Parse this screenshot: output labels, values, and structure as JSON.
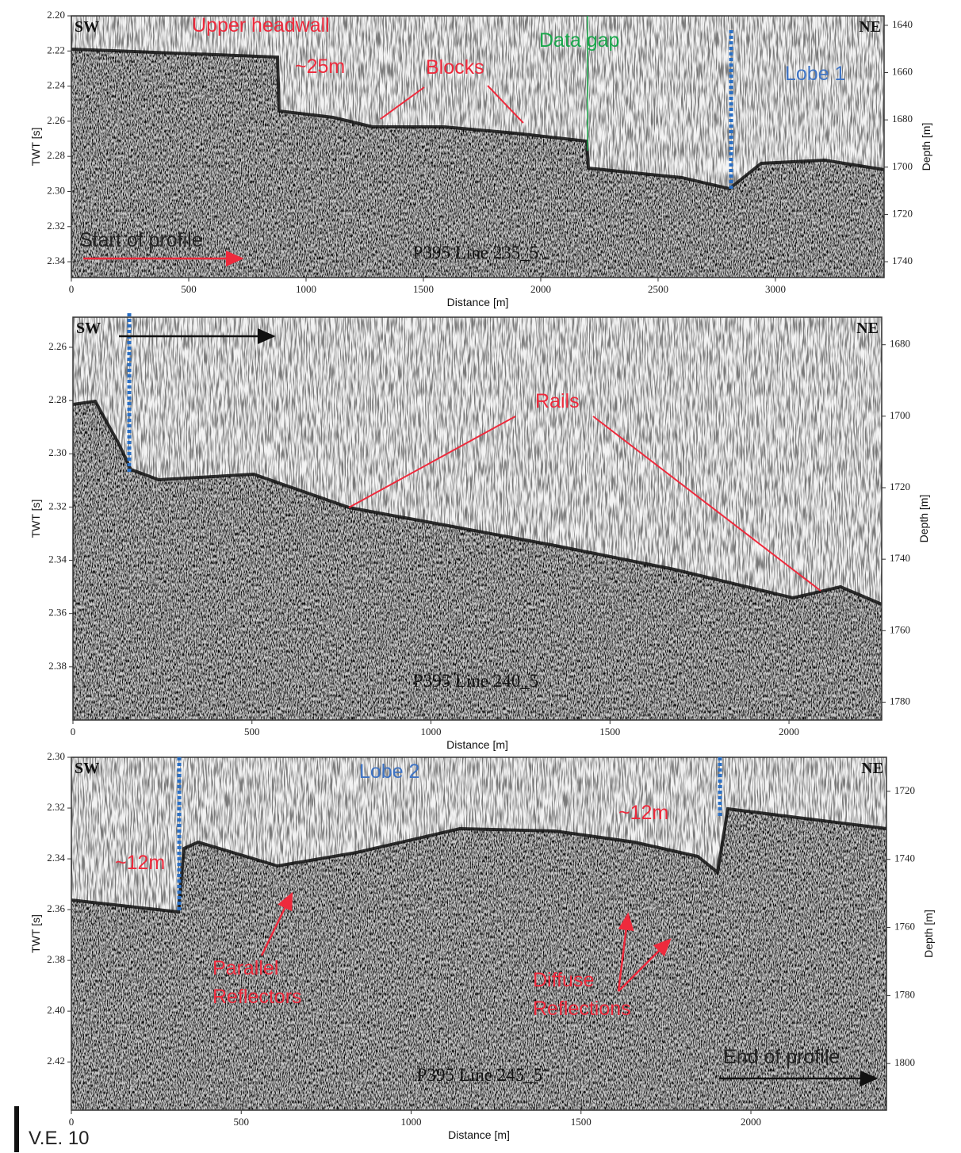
{
  "panels": [
    {
      "corner_left": "SW",
      "corner_right": "NE",
      "line_label": "P395 Line 235_5",
      "x_label": "Distance [m]",
      "y_label": "TWT [s]",
      "y2_label": "Depth [m]",
      "xlim": [
        0,
        3463
      ],
      "xticks": [
        0,
        500,
        1000,
        1500,
        2000,
        2500,
        3000
      ],
      "ylim": [
        2.349,
        2.2
      ],
      "yticks": [
        {
          "value": 2.2,
          "label": "2.20"
        },
        2.22,
        2.24,
        2.26,
        2.28,
        {
          "value": 2.3,
          "label": "2.30"
        },
        2.32,
        2.34
      ],
      "y2lim": [
        1746.7,
        1636
      ],
      "y2ticks": [
        1640,
        1660,
        1680,
        1700,
        1720,
        1740
      ],
      "annotations": [
        {
          "text": "Upper headwall",
          "color": "#ee2a3c"
        },
        {
          "text": "~25m",
          "color": "#ee2a3c"
        },
        {
          "text": "Blocks",
          "color": "#ee2a3c"
        },
        {
          "text": "Data gap",
          "color": "#1aa64b"
        },
        {
          "text": "Lobe 1",
          "color": "#3f74c4"
        },
        {
          "text": "Start of profile",
          "color": "#222222"
        }
      ]
    },
    {
      "corner_left": "SW",
      "corner_right": "NE",
      "line_label": "P395 Line 240_5",
      "x_label": "Distance [m]",
      "y_label": "TWT [s]",
      "y2_label": "Depth [m]",
      "xlim": [
        0,
        2259
      ],
      "xticks": [
        0,
        500,
        1000,
        1500,
        2000
      ],
      "ylim": [
        2.4,
        2.2487
      ],
      "yticks": [
        2.26,
        2.28,
        {
          "value": 2.3,
          "label": "2.30"
        },
        2.32,
        2.34,
        2.36,
        2.38
      ],
      "y2lim": [
        1785,
        1672.3
      ],
      "y2ticks": [
        1680,
        1700,
        1720,
        1740,
        1760,
        1780
      ],
      "annotations": [
        {
          "text": "Rails",
          "color": "#ee2a3c"
        }
      ]
    },
    {
      "corner_left": "SW",
      "corner_right": "NE",
      "line_label": "P395 Line 245_5",
      "x_label": "Distance [m]",
      "y_label": "TWT [s]",
      "y2_label": "Depth [m]",
      "xlim": [
        0,
        2399
      ],
      "xticks": [
        0,
        500,
        1000,
        1500,
        2000
      ],
      "ylim": [
        2.439,
        2.3
      ],
      "yticks": [
        {
          "value": 2.3,
          "label": "2.30"
        },
        2.32,
        2.34,
        2.36,
        2.38,
        {
          "value": 2.4,
          "label": "2.40"
        },
        2.42
      ],
      "y2lim": [
        1813.7,
        1710
      ],
      "y2ticks": [
        1720,
        1740,
        1760,
        1780,
        1800
      ],
      "annotations": [
        {
          "text": "Lobe 2",
          "color": "#3f74c4"
        },
        {
          "text": "~12m",
          "color": "#ee2a3c"
        },
        {
          "text": "~12m",
          "color": "#ee2a3c"
        },
        {
          "text": "Parallel",
          "color": "#ee2a3c"
        },
        {
          "text": "Reflectors",
          "color": "#ee2a3c"
        },
        {
          "text": "Diffuse",
          "color": "#ee2a3c"
        },
        {
          "text": "Reflections",
          "color": "#ee2a3c"
        },
        {
          "text": "End of profile",
          "color": "#222222"
        }
      ]
    }
  ],
  "footer": "V.E. 10"
}
